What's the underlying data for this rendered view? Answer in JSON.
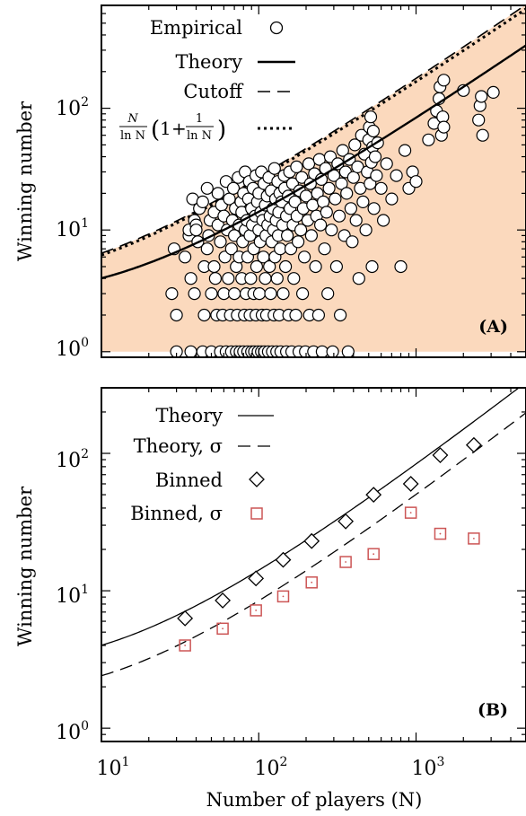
{
  "chart_data": [
    {
      "type": "scatter",
      "panel_label": "(A)",
      "xlabel": "",
      "ylabel": "Winning number",
      "xscale": "log",
      "yscale": "log",
      "xlim": [
        10,
        5000
      ],
      "ylim": [
        0.9,
        700
      ],
      "x_ticks": [
        {
          "base": "10",
          "exp": "1",
          "value": 10
        },
        {
          "base": "10",
          "exp": "2",
          "value": 100
        },
        {
          "base": "10",
          "exp": "3",
          "value": 1000
        }
      ],
      "y_ticks": [
        {
          "base": "10",
          "exp": "0",
          "value": 1
        },
        {
          "base": "10",
          "exp": "1",
          "value": 10
        },
        {
          "base": "10",
          "exp": "2",
          "value": 100
        }
      ],
      "legend_position": "top-left",
      "legend": [
        {
          "label": "Empirical",
          "style": "circle"
        },
        {
          "label": "Theory",
          "style": "solid"
        },
        {
          "label": "Cutoff",
          "style": "dashed"
        },
        {
          "label_formula": "N/lnN (1+1/lnN)",
          "style": "dotted"
        }
      ],
      "legend_formula_parts": {
        "num": "N",
        "den": "ln N",
        "one": "1",
        "plus": "+"
      },
      "shade_color": "#fbd9bd",
      "empirical": [
        [
          28,
          3
        ],
        [
          29,
          7
        ],
        [
          30,
          2
        ],
        [
          30,
          1
        ],
        [
          34,
          6
        ],
        [
          36,
          9
        ],
        [
          36,
          10
        ],
        [
          37,
          1
        ],
        [
          37,
          4
        ],
        [
          38,
          18
        ],
        [
          39,
          3
        ],
        [
          39,
          12
        ],
        [
          40,
          11
        ],
        [
          40,
          10
        ],
        [
          41,
          8
        ],
        [
          42,
          15
        ],
        [
          44,
          1
        ],
        [
          44,
          17
        ],
        [
          45,
          5
        ],
        [
          45,
          2
        ],
        [
          47,
          7
        ],
        [
          47,
          22
        ],
        [
          48,
          9
        ],
        [
          49,
          12
        ],
        [
          50,
          1
        ],
        [
          50,
          3
        ],
        [
          52,
          5
        ],
        [
          52,
          14
        ],
        [
          53,
          4
        ],
        [
          54,
          2
        ],
        [
          55,
          20
        ],
        [
          55,
          11
        ],
        [
          57,
          1
        ],
        [
          57,
          8
        ],
        [
          58,
          16
        ],
        [
          59,
          2
        ],
        [
          60,
          3
        ],
        [
          60,
          13
        ],
        [
          61,
          6
        ],
        [
          62,
          25
        ],
        [
          62,
          1
        ],
        [
          63,
          10
        ],
        [
          64,
          4
        ],
        [
          65,
          18
        ],
        [
          66,
          2
        ],
        [
          67,
          1
        ],
        [
          67,
          7
        ],
        [
          68,
          12
        ],
        [
          69,
          22
        ],
        [
          70,
          3
        ],
        [
          70,
          9
        ],
        [
          71,
          15
        ],
        [
          72,
          5
        ],
        [
          72,
          1
        ],
        [
          73,
          2
        ],
        [
          74,
          27
        ],
        [
          75,
          11
        ],
        [
          75,
          6
        ],
        [
          76,
          1
        ],
        [
          77,
          17
        ],
        [
          78,
          4
        ],
        [
          78,
          14
        ],
        [
          79,
          8
        ],
        [
          80,
          1
        ],
        [
          80,
          20
        ],
        [
          81,
          2
        ],
        [
          82,
          10
        ],
        [
          82,
          30
        ],
        [
          83,
          3
        ],
        [
          84,
          12
        ],
        [
          85,
          6
        ],
        [
          85,
          1
        ],
        [
          86,
          18
        ],
        [
          87,
          25
        ],
        [
          88,
          2
        ],
        [
          88,
          9
        ],
        [
          89,
          4
        ],
        [
          90,
          1
        ],
        [
          90,
          15
        ],
        [
          91,
          11
        ],
        [
          92,
          22
        ],
        [
          93,
          7
        ],
        [
          93,
          3
        ],
        [
          94,
          1
        ],
        [
          95,
          13
        ],
        [
          96,
          2
        ],
        [
          96,
          28
        ],
        [
          97,
          5
        ],
        [
          98,
          17
        ],
        [
          99,
          1
        ],
        [
          100,
          10
        ],
        [
          100,
          20
        ],
        [
          101,
          3
        ],
        [
          102,
          8
        ],
        [
          103,
          14
        ],
        [
          104,
          1
        ],
        [
          104,
          30
        ],
        [
          105,
          2
        ],
        [
          106,
          12
        ],
        [
          107,
          6
        ],
        [
          108,
          24
        ],
        [
          109,
          1
        ],
        [
          110,
          16
        ],
        [
          110,
          4
        ],
        [
          111,
          9
        ],
        [
          112,
          2
        ],
        [
          113,
          19
        ],
        [
          114,
          11
        ],
        [
          115,
          1
        ],
        [
          116,
          27
        ],
        [
          117,
          5
        ],
        [
          118,
          13
        ],
        [
          119,
          3
        ],
        [
          120,
          21
        ],
        [
          121,
          8
        ],
        [
          122,
          1
        ],
        [
          123,
          15
        ],
        [
          124,
          10
        ],
        [
          125,
          2
        ],
        [
          126,
          32
        ],
        [
          127,
          6
        ],
        [
          128,
          18
        ],
        [
          129,
          12
        ],
        [
          130,
          1
        ],
        [
          131,
          4
        ],
        [
          132,
          25
        ],
        [
          133,
          9
        ],
        [
          134,
          14
        ],
        [
          135,
          2
        ],
        [
          136,
          20
        ],
        [
          137,
          7
        ],
        [
          138,
          1
        ],
        [
          140,
          17
        ],
        [
          142,
          11
        ],
        [
          143,
          3
        ],
        [
          145,
          28
        ],
        [
          146,
          22
        ],
        [
          148,
          5
        ],
        [
          150,
          1
        ],
        [
          150,
          13
        ],
        [
          152,
          9
        ],
        [
          154,
          19
        ],
        [
          155,
          2
        ],
        [
          157,
          30
        ],
        [
          158,
          15
        ],
        [
          160,
          7
        ],
        [
          162,
          1
        ],
        [
          164,
          24
        ],
        [
          165,
          11
        ],
        [
          167,
          4
        ],
        [
          170,
          17
        ],
        [
          172,
          2
        ],
        [
          174,
          33
        ],
        [
          175,
          13
        ],
        [
          178,
          8
        ],
        [
          180,
          1
        ],
        [
          182,
          21
        ],
        [
          185,
          10
        ],
        [
          188,
          27
        ],
        [
          190,
          3
        ],
        [
          192,
          15
        ],
        [
          195,
          6
        ],
        [
          198,
          1
        ],
        [
          200,
          19
        ],
        [
          205,
          12
        ],
        [
          208,
          35
        ],
        [
          210,
          2
        ],
        [
          213,
          24
        ],
        [
          216,
          9
        ],
        [
          220,
          16
        ],
        [
          223,
          1
        ],
        [
          226,
          29
        ],
        [
          230,
          5
        ],
        [
          233,
          13
        ],
        [
          236,
          20
        ],
        [
          240,
          2
        ],
        [
          243,
          38
        ],
        [
          247,
          11
        ],
        [
          250,
          26
        ],
        [
          253,
          1
        ],
        [
          257,
          17
        ],
        [
          262,
          7
        ],
        [
          266,
          32
        ],
        [
          270,
          14
        ],
        [
          275,
          3
        ],
        [
          280,
          22
        ],
        [
          285,
          40
        ],
        [
          290,
          10
        ],
        [
          295,
          1
        ],
        [
          300,
          28
        ],
        [
          306,
          18
        ],
        [
          312,
          5
        ],
        [
          318,
          35
        ],
        [
          325,
          13
        ],
        [
          330,
          2
        ],
        [
          336,
          24
        ],
        [
          342,
          45
        ],
        [
          350,
          9
        ],
        [
          356,
          30
        ],
        [
          362,
          20
        ],
        [
          370,
          1
        ],
        [
          377,
          38
        ],
        [
          385,
          15
        ],
        [
          393,
          8
        ],
        [
          400,
          27
        ],
        [
          408,
          50
        ],
        [
          416,
          12
        ],
        [
          425,
          33
        ],
        [
          433,
          4
        ],
        [
          442,
          22
        ],
        [
          450,
          60
        ],
        [
          460,
          17
        ],
        [
          470,
          42
        ],
        [
          480,
          10
        ],
        [
          490,
          30
        ],
        [
          500,
          55
        ],
        [
          505,
          70
        ],
        [
          510,
          24
        ],
        [
          515,
          85
        ],
        [
          520,
          36
        ],
        [
          525,
          5
        ],
        [
          530,
          48
        ],
        [
          535,
          65
        ],
        [
          540,
          15
        ],
        [
          550,
          40
        ],
        [
          560,
          28
        ],
        [
          570,
          52
        ],
        [
          600,
          22
        ],
        [
          620,
          12
        ],
        [
          650,
          35
        ],
        [
          700,
          18
        ],
        [
          750,
          28
        ],
        [
          800,
          5
        ],
        [
          850,
          45
        ],
        [
          900,
          22
        ],
        [
          950,
          30
        ],
        [
          1000,
          25
        ],
        [
          1200,
          55
        ],
        [
          1300,
          75
        ],
        [
          1350,
          95
        ],
        [
          1400,
          120
        ],
        [
          1420,
          150
        ],
        [
          1450,
          60
        ],
        [
          1480,
          85
        ],
        [
          1500,
          70
        ],
        [
          1500,
          170
        ],
        [
          2000,
          140
        ],
        [
          2500,
          80
        ],
        [
          2550,
          105
        ],
        [
          2600,
          125
        ],
        [
          2650,
          60
        ],
        [
          3100,
          135
        ]
      ]
    },
    {
      "type": "line",
      "panel_label": "(B)",
      "xlabel": "Number of players (N)",
      "ylabel": "Winning number",
      "xscale": "log",
      "yscale": "log",
      "xlim": [
        10,
        5000
      ],
      "ylim": [
        0.8,
        300
      ],
      "x_ticks": [
        {
          "base": "10",
          "exp": "1",
          "value": 10
        },
        {
          "base": "10",
          "exp": "2",
          "value": 100
        },
        {
          "base": "10",
          "exp": "3",
          "value": 1000
        }
      ],
      "y_ticks": [
        {
          "base": "10",
          "exp": "0",
          "value": 1
        },
        {
          "base": "10",
          "exp": "1",
          "value": 10
        },
        {
          "base": "10",
          "exp": "2",
          "value": 100
        }
      ],
      "legend_position": "top-left",
      "legend": [
        {
          "label": "Theory",
          "style": "solid"
        },
        {
          "label": "Theory, σ",
          "style": "dashed"
        },
        {
          "label": "Binned",
          "style": "diamond"
        },
        {
          "label": "Binned, σ",
          "style": "square"
        }
      ],
      "marker_color_sigma": "#cc5555",
      "series": [
        {
          "name": "Binned",
          "x": [
            34,
            59,
            96,
            143,
            217,
            357,
            537,
            926,
            1425,
            2330
          ],
          "values": [
            6.3,
            8.5,
            12.3,
            16.8,
            23,
            32,
            50,
            60,
            97,
            115
          ]
        },
        {
          "name": "Binned, σ",
          "x": [
            34,
            59,
            96,
            143,
            217,
            357,
            537,
            926,
            1425,
            2330
          ],
          "values": [
            4.0,
            5.3,
            7.2,
            9.1,
            11.5,
            16.2,
            18.5,
            37,
            26,
            24
          ]
        }
      ]
    }
  ]
}
